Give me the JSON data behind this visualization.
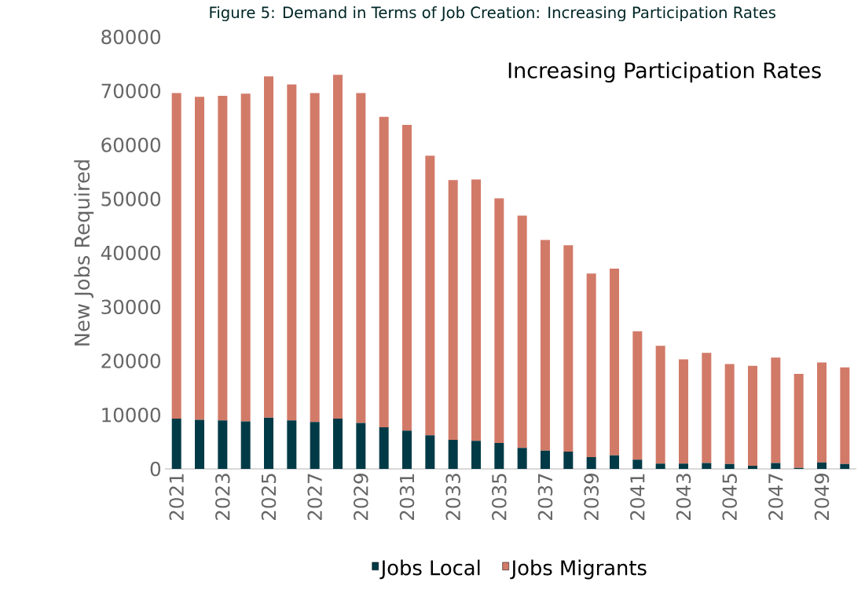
{
  "chart_data": {
    "type": "bar",
    "stacked": true,
    "title": "Figure 5: Demand in Terms of Job Creation: Increasing Participation Rates",
    "subtitle": "Increasing Participation Rates",
    "ylabel": "New Jobs Required",
    "categories": [
      "2021",
      null,
      "2023",
      null,
      "2025",
      null,
      "2027",
      null,
      "2029",
      null,
      "2031",
      null,
      "2033",
      null,
      "2035",
      null,
      "2037",
      null,
      "2039",
      null,
      "2041",
      null,
      "2043",
      null,
      "2045",
      null,
      "2047",
      null,
      "2049",
      null
    ],
    "series": [
      {
        "name": "Jobs Local",
        "color": "#003a46",
        "values": [
          9300,
          9100,
          9000,
          8800,
          9500,
          9000,
          8700,
          9300,
          8500,
          7700,
          7100,
          6200,
          5400,
          5200,
          4800,
          3900,
          3400,
          3200,
          2200,
          2500,
          1700,
          1000,
          1000,
          1100,
          900,
          600,
          1100,
          200,
          1200,
          900
        ]
      },
      {
        "name": "Jobs Migrants",
        "color": "#d27a68",
        "values": [
          60300,
          59800,
          60100,
          60700,
          63200,
          62200,
          60900,
          63700,
          61100,
          57500,
          56600,
          51800,
          48100,
          48400,
          45300,
          43000,
          39000,
          38200,
          34000,
          34600,
          23800,
          21800,
          19300,
          20400,
          18500,
          18500,
          19500,
          17400,
          18500,
          17900
        ]
      }
    ],
    "ylim": [
      0,
      80000
    ],
    "yticks": [
      0,
      10000,
      20000,
      30000,
      40000,
      50000,
      60000,
      70000,
      80000
    ],
    "grid": false,
    "legend": "bottom"
  }
}
